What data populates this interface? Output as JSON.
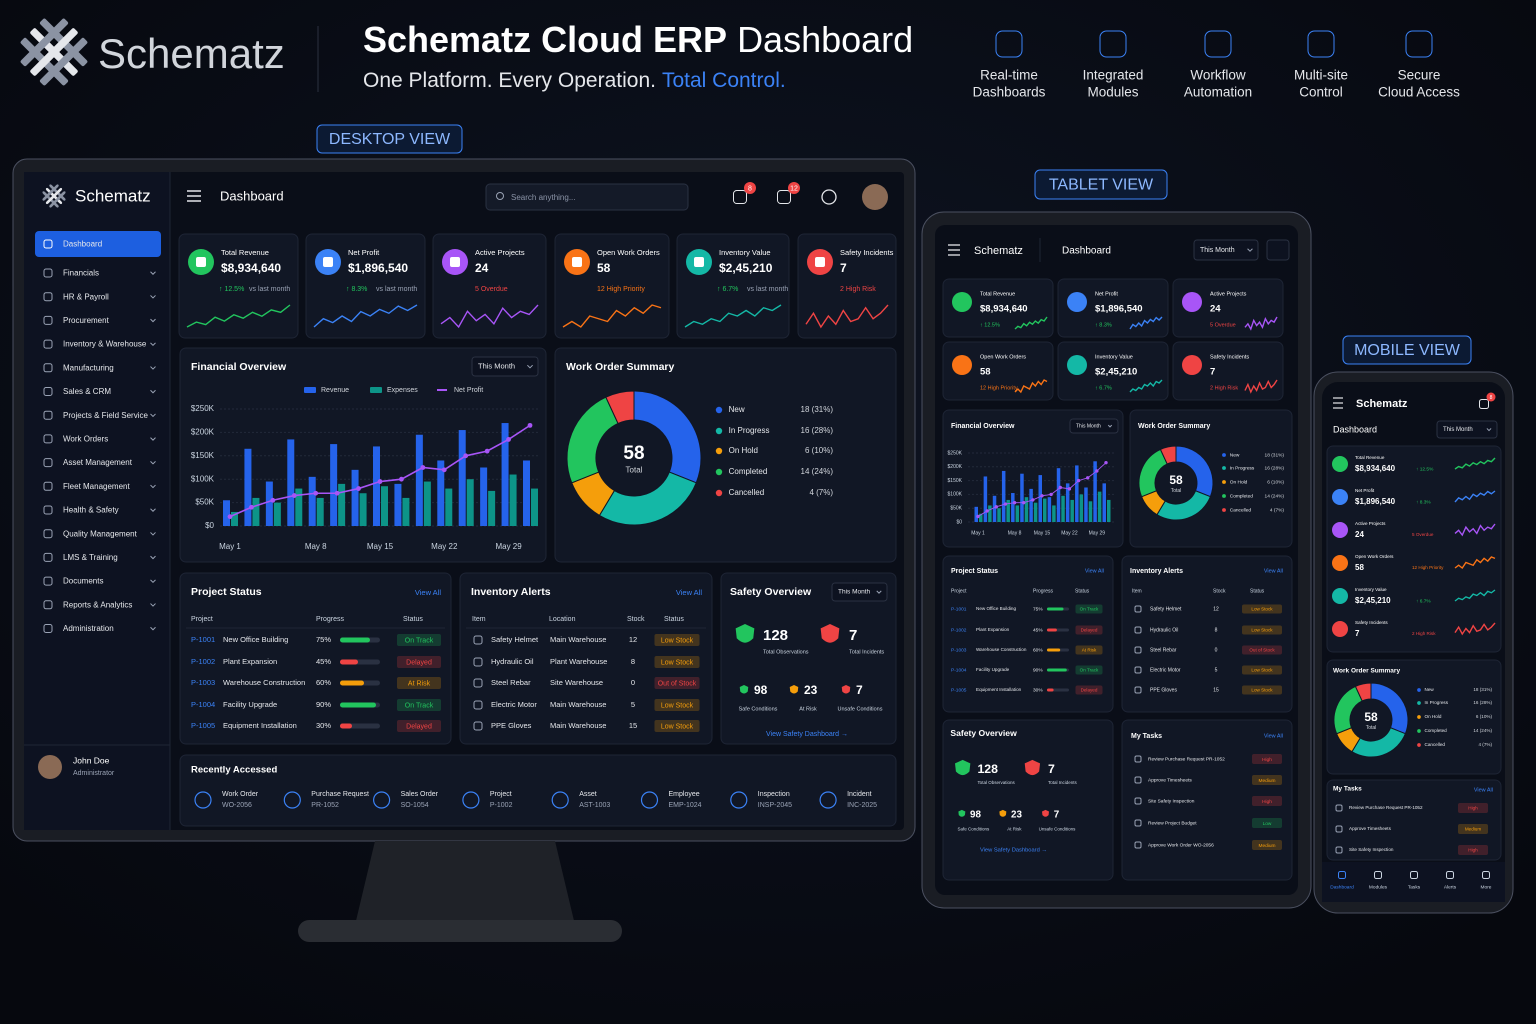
{
  "header": {
    "brand": "Schematz",
    "title_main": "Schematz Cloud ERP",
    "title_rest": "Dashboard",
    "tagline": "One Platform. Every Operation.",
    "tagline_highlight": "Total Control."
  },
  "features": [
    {
      "line1": "Real-time",
      "line2": "Dashboards"
    },
    {
      "line1": "Integrated",
      "line2": "Modules"
    },
    {
      "line1": "Workflow",
      "line2": "Automation"
    },
    {
      "line1": "Multi-site",
      "line2": "Control"
    },
    {
      "line1": "Secure",
      "line2": "Cloud Access"
    }
  ],
  "view_badges": {
    "desktop": "DESKTOP VIEW",
    "tablet": "TABLET VIEW",
    "mobile": "MOBILE VIEW"
  },
  "app": {
    "brand": "Schematz",
    "page": "Dashboard",
    "search_placeholder": "Search anything...",
    "notifications": 8,
    "messages": 12,
    "period": "This Month",
    "user": {
      "name": "John Doe",
      "role": "Administrator"
    }
  },
  "nav": [
    "Dashboard",
    "Financials",
    "HR & Payroll",
    "Procurement",
    "Inventory & Warehouse",
    "Manufacturing",
    "Sales & CRM",
    "Projects & Field Service",
    "Work Orders",
    "Asset Management",
    "Fleet Management",
    "Health & Safety",
    "Quality Management",
    "LMS & Training",
    "Documents",
    "Reports & Analytics",
    "Administration"
  ],
  "kpis": [
    {
      "title": "Total Revenue",
      "value": "$8,934,640",
      "change": "↑ 12.5%",
      "change_color": "#22c55e",
      "note": "vs last month",
      "note_color": "#9aa3b5",
      "color": "#22c55e",
      "trend": [
        3,
        4,
        3.5,
        5,
        4.2,
        5.5,
        4.8,
        6,
        5.2,
        6.5,
        6,
        7.5
      ]
    },
    {
      "title": "Net Profit",
      "value": "$1,896,540",
      "change": "↑ 8.3%",
      "change_color": "#22c55e",
      "note": "vs last month",
      "note_color": "#9aa3b5",
      "color": "#3b82f6",
      "trend": [
        3,
        4.5,
        3.8,
        5,
        4,
        5.8,
        5,
        6.2,
        5.5,
        6.8,
        6,
        7
      ]
    },
    {
      "title": "Active Projects",
      "value": "24",
      "note": "5 Overdue",
      "note_color": "#ef4444",
      "color": "#a855f7",
      "trend": [
        4,
        5,
        3.5,
        6,
        4.5,
        5.5,
        4,
        6.5,
        5,
        6,
        5.5,
        7
      ]
    },
    {
      "title": "Open Work Orders",
      "value": "58",
      "note": "12 High Priority",
      "note_color": "#f97316",
      "color": "#f97316",
      "trend": [
        3,
        4,
        3,
        5,
        4.5,
        4,
        6,
        5,
        6.5,
        5.5,
        7,
        6.5
      ]
    },
    {
      "title": "Inventory Value",
      "value": "$2,45,210",
      "change": "↑ 6.7%",
      "change_color": "#22c55e",
      "note": "vs last month",
      "note_color": "#9aa3b5",
      "color": "#14b8a6",
      "trend": [
        3,
        4,
        3.5,
        4.5,
        4,
        5.5,
        5,
        6,
        5,
        6.5,
        6,
        7
      ]
    },
    {
      "title": "Safety Incidents",
      "value": "7",
      "note": "2 High Risk",
      "note_color": "#ef4444",
      "color": "#ef4444",
      "trend": [
        4,
        6,
        3.5,
        5.5,
        4,
        6.5,
        4.5,
        5,
        7,
        5,
        6,
        7.5
      ]
    }
  ],
  "financial_overview": {
    "title": "Financial Overview",
    "type": "bar",
    "categories": [
      "May 1",
      null,
      null,
      null,
      "May 8",
      null,
      null,
      "May 15",
      null,
      null,
      "May 22",
      null,
      null,
      "May 29",
      null
    ],
    "series": [
      {
        "name": "Revenue",
        "color": "#2563eb",
        "values": [
          55000,
          165000,
          95000,
          185000,
          105000,
          175000,
          120000,
          170000,
          90000,
          195000,
          140000,
          205000,
          125000,
          220000,
          140000
        ]
      },
      {
        "name": "Expenses",
        "color": "#0d9488",
        "values": [
          30000,
          60000,
          50000,
          80000,
          60000,
          90000,
          70000,
          85000,
          60000,
          95000,
          80000,
          100000,
          75000,
          110000,
          80000
        ]
      },
      {
        "name": "Net Profit",
        "color": "#a855f7",
        "type": "line",
        "values": [
          20000,
          40000,
          55000,
          65000,
          70000,
          70000,
          80000,
          95000,
          100000,
          125000,
          120000,
          150000,
          160000,
          185000,
          215000
        ]
      }
    ],
    "ylim": [
      0,
      250000
    ],
    "yticks": [
      {
        "value": 0,
        "label": "$0"
      },
      {
        "value": 50000,
        "label": "$50K"
      },
      {
        "value": 100000,
        "label": "$100K"
      },
      {
        "value": 150000,
        "label": "$150K"
      },
      {
        "value": 200000,
        "label": "$200K"
      },
      {
        "value": 250000,
        "label": "$250K"
      }
    ],
    "grid": true
  },
  "work_order_summary": {
    "title": "Work Order Summary",
    "type": "donut",
    "total": 58,
    "total_label": "Total",
    "series": [
      {
        "name": "New",
        "value": 18,
        "label": "18 (31%)",
        "color": "#2563eb"
      },
      {
        "name": "In Progress",
        "value": 16,
        "label": "16 (28%)",
        "color": "#14b8a6"
      },
      {
        "name": "On Hold",
        "value": 6,
        "label": "6 (10%)",
        "color": "#f59e0b"
      },
      {
        "name": "Completed",
        "value": 14,
        "label": "14 (24%)",
        "color": "#22c55e"
      },
      {
        "name": "Cancelled",
        "value": 4,
        "label": "4 (7%)",
        "color": "#ef4444"
      }
    ]
  },
  "project_status": {
    "title": "Project Status",
    "view_all": "View All",
    "columns": [
      "Project",
      "Progress",
      "Status"
    ],
    "rows": [
      {
        "id": "P-1001",
        "name": "New Office Building",
        "progress": 75,
        "progress_label": "75%",
        "status": "On Track",
        "status_color": "#22c55e"
      },
      {
        "id": "P-1002",
        "name": "Plant Expansion",
        "progress": 45,
        "progress_label": "45%",
        "status": "Delayed",
        "status_color": "#ef4444"
      },
      {
        "id": "P-1003",
        "name": "Warehouse Construction",
        "progress": 60,
        "progress_label": "60%",
        "status": "At Risk",
        "status_color": "#f59e0b"
      },
      {
        "id": "P-1004",
        "name": "Facility Upgrade",
        "progress": 90,
        "progress_label": "90%",
        "status": "On Track",
        "status_color": "#22c55e"
      },
      {
        "id": "P-1005",
        "name": "Equipment Installation",
        "progress": 30,
        "progress_label": "30%",
        "status": "Delayed",
        "status_color": "#ef4444"
      }
    ]
  },
  "inventory_alerts": {
    "title": "Inventory Alerts",
    "view_all": "View All",
    "columns": [
      "Item",
      "Location",
      "Stock",
      "Status"
    ],
    "rows": [
      {
        "item": "Safety Helmet",
        "location": "Main Warehouse",
        "stock": 12,
        "status": "Low Stock",
        "status_color": "#f59e0b"
      },
      {
        "item": "Hydraulic Oil",
        "location": "Plant Warehouse",
        "stock": 8,
        "status": "Low Stock",
        "status_color": "#f59e0b"
      },
      {
        "item": "Steel Rebar",
        "location": "Site Warehouse",
        "stock": 0,
        "status": "Out of Stock",
        "status_color": "#ef4444"
      },
      {
        "item": "Electric Motor",
        "location": "Main Warehouse",
        "stock": 5,
        "status": "Low Stock",
        "status_color": "#f59e0b"
      },
      {
        "item": "PPE Gloves",
        "location": "Main Warehouse",
        "stock": 15,
        "status": "Low Stock",
        "status_color": "#f59e0b"
      }
    ]
  },
  "safety_overview": {
    "title": "Safety Overview",
    "observations": 128,
    "observations_label": "Total Observations",
    "incidents": 7,
    "incidents_label": "Total Incidents",
    "safe": 98,
    "safe_label": "Safe Conditions",
    "at_risk": 23,
    "at_risk_label": "At Risk",
    "unsafe": 7,
    "unsafe_label": "Unsafe Conditions",
    "link": "View Safety Dashboard →"
  },
  "recently_accessed": {
    "title": "Recently Accessed",
    "items": [
      {
        "type": "Work Order",
        "id": "WO-2056"
      },
      {
        "type": "Purchase Request",
        "id": "PR-1052"
      },
      {
        "type": "Sales Order",
        "id": "SO-1054"
      },
      {
        "type": "Project",
        "id": "P-1002"
      },
      {
        "type": "Asset",
        "id": "AST-1003"
      },
      {
        "type": "Employee",
        "id": "EMP-1024"
      },
      {
        "type": "Inspection",
        "id": "INSP-2045"
      },
      {
        "type": "Incident",
        "id": "INC-2025"
      }
    ]
  },
  "my_tasks": {
    "title": "My Tasks",
    "view_all": "View All",
    "items": [
      {
        "name": "Review Purchase Request PR-1052",
        "priority": "High",
        "color": "#ef4444"
      },
      {
        "name": "Approve Timesheets",
        "priority": "Medium",
        "color": "#f59e0b"
      },
      {
        "name": "Site Safety Inspection",
        "priority": "High",
        "color": "#ef4444"
      },
      {
        "name": "Review Project Budget",
        "priority": "Low",
        "color": "#22c55e"
      },
      {
        "name": "Approve Work Order WO-2056",
        "priority": "Medium",
        "color": "#f59e0b"
      }
    ]
  },
  "mobile_nav": [
    "Dashboard",
    "Modules",
    "Tasks",
    "Alerts",
    "More"
  ]
}
